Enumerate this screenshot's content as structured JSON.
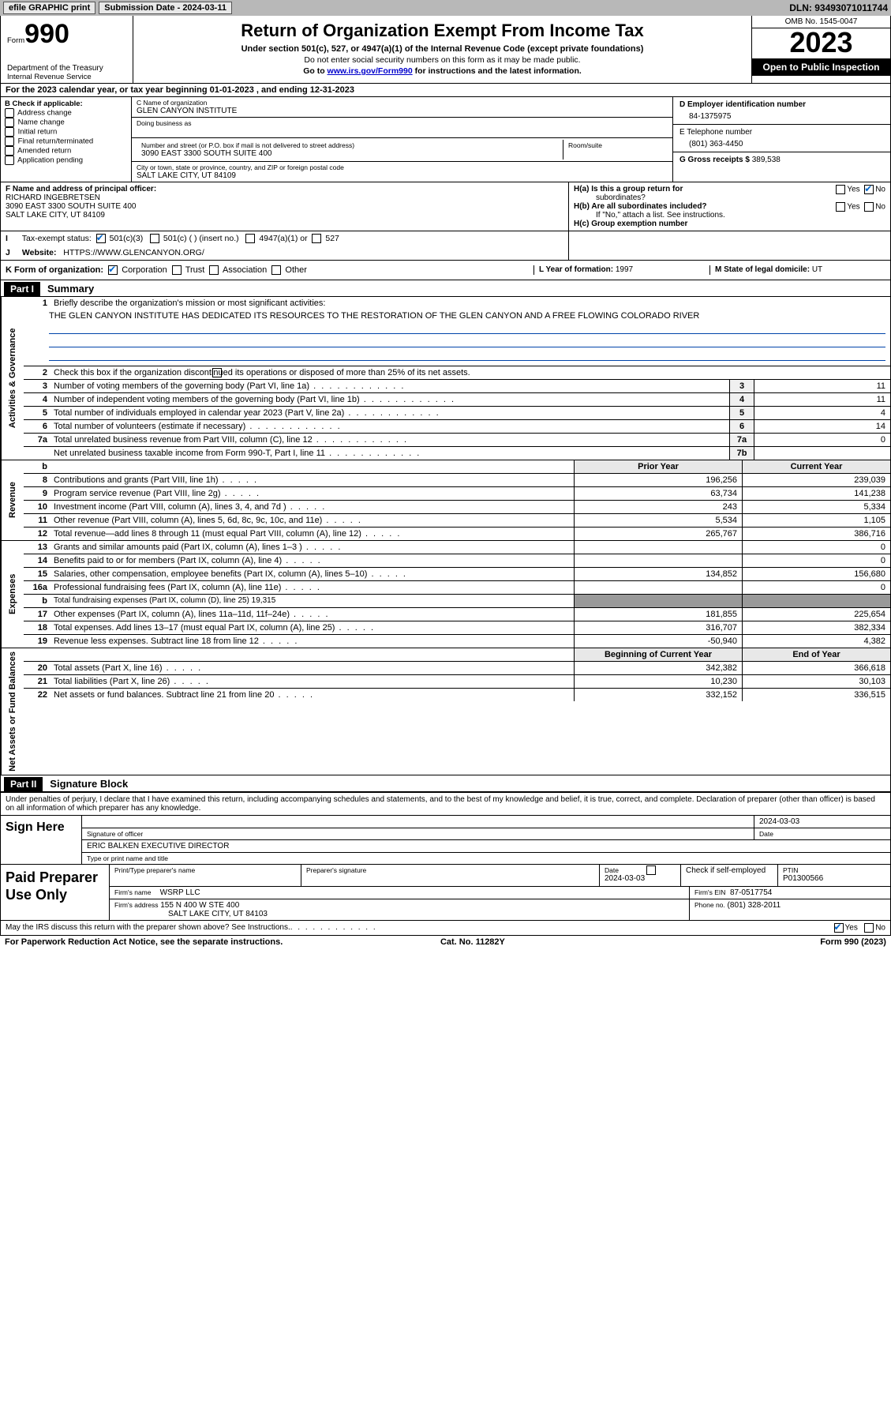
{
  "topbar": {
    "efile": "efile GRAPHIC print",
    "submission_label": "Submission Date - 2024-03-11",
    "dln_label": "DLN: 93493071011744"
  },
  "header": {
    "form_word": "Form",
    "form_no": "990",
    "dept": "Department of the Treasury",
    "irs": "Internal Revenue Service",
    "title": "Return of Organization Exempt From Income Tax",
    "sub": "Under section 501(c), 527, or 4947(a)(1) of the Internal Revenue Code (except private foundations)",
    "note1": "Do not enter social security numbers on this form as it may be made public.",
    "note2_pre": "Go to ",
    "note2_link": "www.irs.gov/Form990",
    "note2_post": " for instructions and the latest information.",
    "omb": "OMB No. 1545-0047",
    "year": "2023",
    "inspect": "Open to Public Inspection"
  },
  "line_a": "For the 2023 calendar year, or tax year beginning 01-01-2023   , and ending 12-31-2023",
  "box_b": {
    "title": "B Check if applicable:",
    "items": [
      "Address change",
      "Name change",
      "Initial return",
      "Final return/terminated",
      "Amended return",
      "Application pending"
    ]
  },
  "box_c": {
    "name_label": "C Name of organization",
    "name": "GLEN CANYON INSTITUTE",
    "dba_label": "Doing business as",
    "addr_label": "Number and street (or P.O. box if mail is not delivered to street address)",
    "room_label": "Room/suite",
    "addr": "3090 EAST 3300 SOUTH SUITE 400",
    "city_label": "City or town, state or province, country, and ZIP or foreign postal code",
    "city": "SALT LAKE CITY, UT  84109"
  },
  "box_d": {
    "label": "D Employer identification number",
    "value": "84-1375975"
  },
  "box_e": {
    "label": "E Telephone number",
    "value": "(801) 363-4450"
  },
  "box_g": {
    "label": "G Gross receipts $",
    "value": "389,538"
  },
  "box_f": {
    "label": "F  Name and address of principal officer:",
    "name": "RICHARD INGEBRETSEN",
    "addr1": "3090 EAST 3300 SOUTH SUITE 400",
    "addr2": "SALT LAKE CITY, UT  84109"
  },
  "box_h": {
    "a_label": "H(a)  Is this a group return for",
    "a_label2": "subordinates?",
    "a_yes": "Yes",
    "a_no": "No",
    "b_label": "H(b)  Are all subordinates included?",
    "b_yes": "Yes",
    "b_no": "No",
    "b_note": "If \"No,\" attach a list. See instructions.",
    "c_label": "H(c)  Group exemption number"
  },
  "box_i": {
    "label": "Tax-exempt status:",
    "o1": "501(c)(3)",
    "o2": "501(c) (  ) (insert no.)",
    "o3": "4947(a)(1) or",
    "o4": "527"
  },
  "box_j": {
    "label": "Website:",
    "value": "HTTPS://WWW.GLENCANYON.ORG/"
  },
  "box_k": {
    "label": "K Form of organization:",
    "o1": "Corporation",
    "o2": "Trust",
    "o3": "Association",
    "o4": "Other"
  },
  "box_l": {
    "label": "L Year of formation: ",
    "value": "1997"
  },
  "box_m": {
    "label": "M State of legal domicile: ",
    "value": "UT"
  },
  "part1": {
    "hdr": "Part I",
    "title": "Summary",
    "sections": {
      "gov": "Activities & Governance",
      "rev": "Revenue",
      "exp": "Expenses",
      "net": "Net Assets or Fund Balances"
    },
    "l1": "Briefly describe the organization's mission or most significant activities:",
    "l1_text": "THE GLEN CANYON INSTITUTE HAS DEDICATED ITS RESOURCES TO THE RESTORATION OF THE GLEN CANYON AND A FREE FLOWING COLORADO RIVER",
    "l2": "Check this box      if the organization discontinued its operations or disposed of more than 25% of its net assets.",
    "rows_single": [
      {
        "n": "3",
        "t": "Number of voting members of the governing body (Part VI, line 1a)",
        "box": "3",
        "v": "11"
      },
      {
        "n": "4",
        "t": "Number of independent voting members of the governing body (Part VI, line 1b)",
        "box": "4",
        "v": "11"
      },
      {
        "n": "5",
        "t": "Total number of individuals employed in calendar year 2023 (Part V, line 2a)",
        "box": "5",
        "v": "4"
      },
      {
        "n": "6",
        "t": "Total number of volunteers (estimate if necessary)",
        "box": "6",
        "v": "14"
      },
      {
        "n": "7a",
        "t": "Total unrelated business revenue from Part VIII, column (C), line 12",
        "box": "7a",
        "v": "0"
      },
      {
        "n": "",
        "t": "Net unrelated business taxable income from Form 990-T, Part I, line 11",
        "box": "7b",
        "v": ""
      }
    ],
    "hdr_prior": "Prior Year",
    "hdr_curr": "Current Year",
    "rev_rows": [
      {
        "n": "8",
        "t": "Contributions and grants (Part VIII, line 1h)",
        "p": "196,256",
        "c": "239,039"
      },
      {
        "n": "9",
        "t": "Program service revenue (Part VIII, line 2g)",
        "p": "63,734",
        "c": "141,238"
      },
      {
        "n": "10",
        "t": "Investment income (Part VIII, column (A), lines 3, 4, and 7d )",
        "p": "243",
        "c": "5,334"
      },
      {
        "n": "11",
        "t": "Other revenue (Part VIII, column (A), lines 5, 6d, 8c, 9c, 10c, and 11e)",
        "p": "5,534",
        "c": "1,105"
      },
      {
        "n": "12",
        "t": "Total revenue—add lines 8 through 11 (must equal Part VIII, column (A), line 12)",
        "p": "265,767",
        "c": "386,716"
      }
    ],
    "exp_rows": [
      {
        "n": "13",
        "t": "Grants and similar amounts paid (Part IX, column (A), lines 1–3 )",
        "p": "",
        "c": "0"
      },
      {
        "n": "14",
        "t": "Benefits paid to or for members (Part IX, column (A), line 4)",
        "p": "",
        "c": "0"
      },
      {
        "n": "15",
        "t": "Salaries, other compensation, employee benefits (Part IX, column (A), lines 5–10)",
        "p": "134,852",
        "c": "156,680"
      },
      {
        "n": "16a",
        "t": "Professional fundraising fees (Part IX, column (A), line 11e)",
        "p": "",
        "c": "0"
      },
      {
        "n": "b",
        "t": "Total fundraising expenses (Part IX, column (D), line 25) 19,315",
        "grey": true
      },
      {
        "n": "17",
        "t": "Other expenses (Part IX, column (A), lines 11a–11d, 11f–24e)",
        "p": "181,855",
        "c": "225,654"
      },
      {
        "n": "18",
        "t": "Total expenses. Add lines 13–17 (must equal Part IX, column (A), line 25)",
        "p": "316,707",
        "c": "382,334"
      },
      {
        "n": "19",
        "t": "Revenue less expenses. Subtract line 18 from line 12",
        "p": "-50,940",
        "c": "4,382"
      }
    ],
    "hdr_beg": "Beginning of Current Year",
    "hdr_end": "End of Year",
    "net_rows": [
      {
        "n": "20",
        "t": "Total assets (Part X, line 16)",
        "p": "342,382",
        "c": "366,618"
      },
      {
        "n": "21",
        "t": "Total liabilities (Part X, line 26)",
        "p": "10,230",
        "c": "30,103"
      },
      {
        "n": "22",
        "t": "Net assets or fund balances. Subtract line 21 from line 20",
        "p": "332,152",
        "c": "336,515"
      }
    ]
  },
  "part2": {
    "hdr": "Part II",
    "title": "Signature Block",
    "decl": "Under penalties of perjury, I declare that I have examined this return, including accompanying schedules and statements, and to the best of my knowledge and belief, it is true, correct, and complete. Declaration of preparer (other than officer) is based on all information of which preparer has any knowledge.",
    "sign_here": "Sign Here",
    "sig_date": "2024-03-03",
    "sig_officer_label": "Signature of officer",
    "date_label": "Date",
    "officer_name": "ERIC BALKEN  EXECUTIVE DIRECTOR",
    "officer_label": "Type or print name and title",
    "paid": "Paid Preparer Use Only",
    "pp_name_label": "Print/Type preparer's name",
    "pp_sig_label": "Preparer's signature",
    "pp_date_label": "Date",
    "pp_date": "2024-03-03",
    "pp_check_label": "Check        if self-employed",
    "ptin_label": "PTIN",
    "ptin": "P01300566",
    "firm_name_label": "Firm's name",
    "firm_name": "WSRP LLC",
    "firm_ein_label": "Firm's EIN",
    "firm_ein": "87-0517754",
    "firm_addr_label": "Firm's address",
    "firm_addr1": "155 N 400 W STE 400",
    "firm_addr2": "SALT LAKE CITY, UT  84103",
    "phone_label": "Phone no.",
    "phone": "(801) 328-2011",
    "discuss": "May the IRS discuss this return with the preparer shown above? See Instructions.",
    "yes": "Yes",
    "no": "No"
  },
  "footer": {
    "left": "For Paperwork Reduction Act Notice, see the separate instructions.",
    "mid": "Cat. No. 11282Y",
    "right": "Form 990 (2023)"
  }
}
